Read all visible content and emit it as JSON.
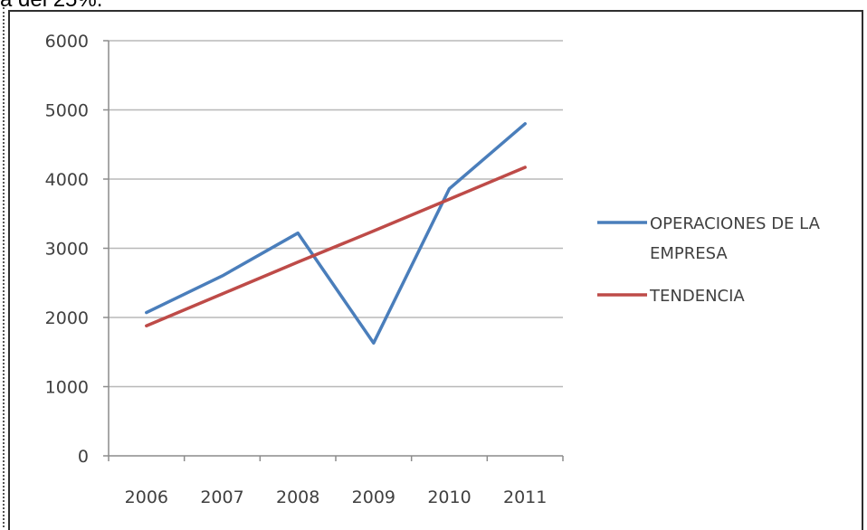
{
  "page": {
    "top_text": "a del 25%."
  },
  "chart_data": {
    "type": "line",
    "title": "",
    "xlabel": "",
    "ylabel": "",
    "categories": [
      "2006",
      "2007",
      "2008",
      "2009",
      "2010",
      "2011"
    ],
    "ylim": [
      0,
      6000
    ],
    "yticks": [
      0,
      1000,
      2000,
      3000,
      4000,
      5000,
      6000
    ],
    "grid": true,
    "legend_position": "right",
    "series": [
      {
        "name": "OPERACIONES DE LA EMPRESA",
        "legend_lines": [
          "OPERACIONES DE LA",
          "EMPRESA"
        ],
        "color": "#4a7ebb",
        "values": [
          2070,
          2600,
          3220,
          1630,
          3860,
          4800
        ]
      },
      {
        "name": "TENDENCIA",
        "legend_lines": [
          "TENDENCIA"
        ],
        "color": "#be4b48",
        "values": [
          1880,
          2340,
          2800,
          3250,
          3710,
          4170
        ]
      }
    ]
  }
}
